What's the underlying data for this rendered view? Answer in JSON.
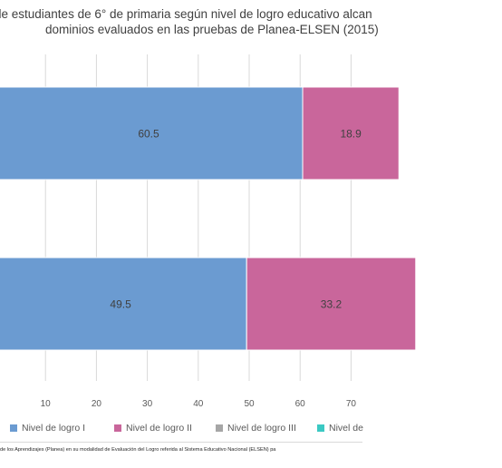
{
  "title_line1": "de estudiantes de 6° de primaria según nivel de logro educativo alcan",
  "title_line2": "dominios evaluados en las pruebas de Planea-ELSEN (2015)",
  "footnote": "de los Aprendizajes (Planea) en su modalidad de Evaluación del Logro referida al Sistema Educativo Nacional (ELSEN) pa",
  "colors": {
    "nivel1": "#6b9bd1",
    "nivel2": "#c9669b",
    "nivel3": "#a6a6a6",
    "nivel4": "#3bc9c3",
    "gridline": "#d9d9d9",
    "bar_label": "#404040"
  },
  "chart_data": {
    "type": "bar",
    "orientation": "horizontal",
    "stacked": true,
    "title": "de estudiantes de 6° de primaria según nivel de logro educativo alcan dominios evaluados en las pruebas de Planea-ELSEN (2015)",
    "categories": [
      "",
      ""
    ],
    "series": [
      {
        "name": "Nivel de logro  I",
        "values": [
          60.5,
          49.5
        ]
      },
      {
        "name": "Nivel de logro  II",
        "values": [
          18.9,
          33.2
        ]
      },
      {
        "name": "Nivel de logro  III",
        "values": [
          null,
          null
        ]
      },
      {
        "name": "Nivel de",
        "values": [
          null,
          null
        ]
      }
    ],
    "x_ticks": [
      "10",
      "20",
      "30",
      "40",
      "50",
      "60",
      "70"
    ],
    "xlim": [
      0,
      100
    ],
    "grid": true,
    "legend": "bottom"
  }
}
